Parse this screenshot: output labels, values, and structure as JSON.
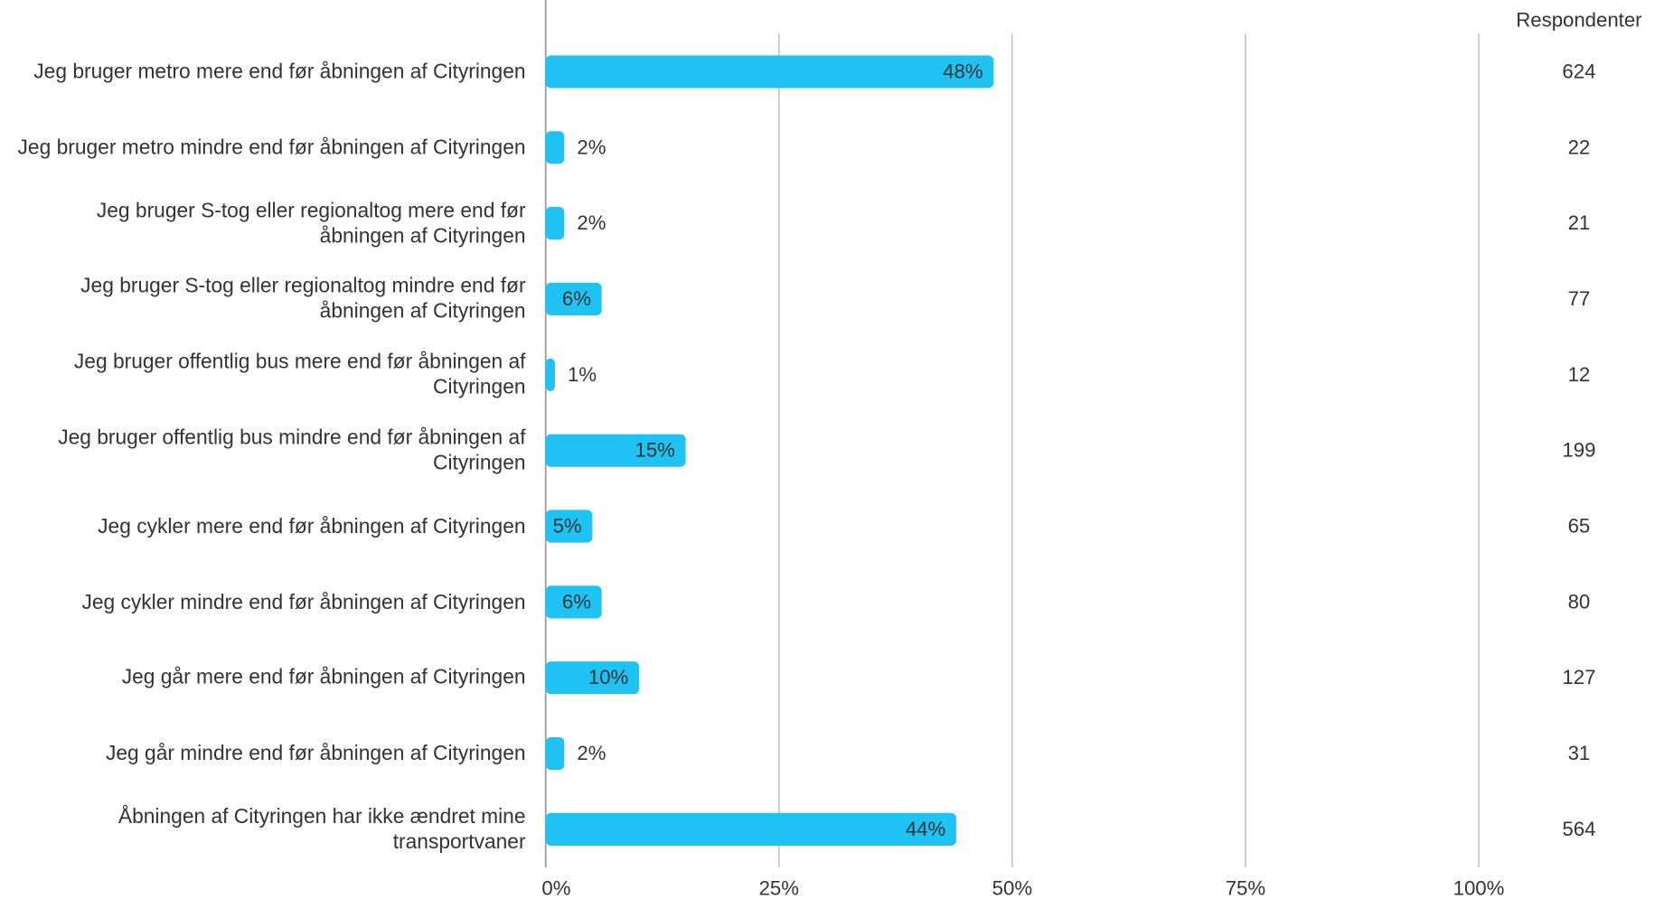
{
  "chart_data": {
    "type": "bar",
    "orientation": "horizontal",
    "color": "#1fc3f3",
    "categories": [
      "Jeg bruger metro mere end før åbningen af Cityringen",
      "Jeg bruger metro mindre end før åbningen af Cityringen",
      "Jeg bruger S-tog eller regionaltog mere end før åbningen af Cityringen",
      "Jeg bruger S-tog eller regionaltog mindre end før åbningen af Cityringen",
      "Jeg bruger offentlig bus mere end før åbningen af Cityringen",
      "Jeg bruger offentlig bus mindre end før åbningen af Cityringen",
      "Jeg cykler mere end før åbningen af Cityringen",
      "Jeg cykler mindre end før åbningen af Cityringen",
      "Jeg går mere end før åbningen af Cityringen",
      "Jeg går mindre end før åbningen af Cityringen",
      "Åbningen af Cityringen har ikke ændret mine transportvaner"
    ],
    "values": [
      48,
      2,
      2,
      6,
      1,
      15,
      5,
      6,
      10,
      2,
      44
    ],
    "value_labels": [
      "48%",
      "2%",
      "2%",
      "6%",
      "1%",
      "15%",
      "5%",
      "6%",
      "10%",
      "2%",
      "44%"
    ],
    "xlim": [
      0,
      100
    ],
    "xticks": [
      {
        "value": 0,
        "label": "0%"
      },
      {
        "value": 25,
        "label": "25%"
      },
      {
        "value": 50,
        "label": "50%"
      },
      {
        "value": 75,
        "label": "75%"
      },
      {
        "value": 100,
        "label": "100%"
      }
    ],
    "grid": true,
    "respondents": {
      "title": "Respondenter",
      "values": [
        624,
        22,
        21,
        77,
        12,
        199,
        65,
        80,
        127,
        31,
        564
      ]
    }
  }
}
